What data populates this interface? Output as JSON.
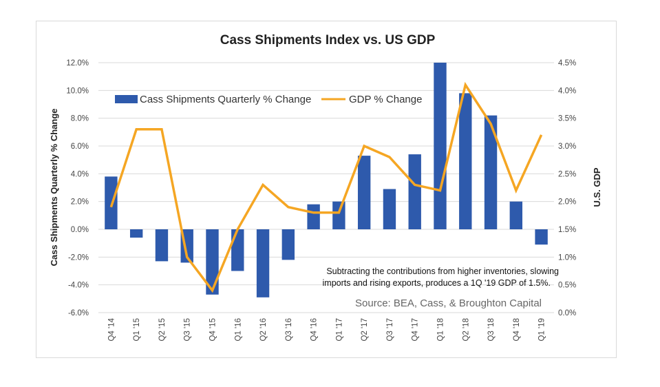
{
  "chart_data": {
    "type": "bar+line",
    "title": "Cass Shipments Index vs. US GDP",
    "ylabel": "Cass Shipments Quarterly % Change",
    "y2label": "U.S. GDP",
    "categories": [
      "Q4 '14",
      "Q1 '15",
      "Q2 '15",
      "Q3 '15",
      "Q4 '15",
      "Q1 '16",
      "Q2 '16",
      "Q3 '16",
      "Q4 '16",
      "Q1 '17",
      "Q2 '17",
      "Q3 '17",
      "Q4 '17",
      "Q1 '18",
      "Q2 '18",
      "Q3 '18",
      "Q4 '18",
      "Q1 '19"
    ],
    "series": [
      {
        "name": "Cass Shipments Quarterly % Change",
        "type": "bar",
        "axis": "left",
        "color": "#2e5aac",
        "values": [
          3.8,
          -0.6,
          -2.3,
          -2.4,
          -4.7,
          -3.0,
          -4.9,
          -2.2,
          1.8,
          2.0,
          5.3,
          2.9,
          5.4,
          12.0,
          9.8,
          8.2,
          2.0,
          -1.1
        ]
      },
      {
        "name": "GDP % Change",
        "type": "line",
        "axis": "right",
        "color": "#f5a623",
        "values": [
          1.9,
          3.3,
          3.3,
          1.0,
          0.4,
          1.5,
          2.3,
          1.9,
          1.8,
          1.8,
          3.0,
          2.8,
          2.3,
          2.2,
          4.1,
          3.4,
          2.2,
          3.2
        ]
      }
    ],
    "ylim": [
      -6,
      12
    ],
    "yticks": [
      "-6.0%",
      "-4.0%",
      "-2.0%",
      "0.0%",
      "2.0%",
      "4.0%",
      "6.0%",
      "8.0%",
      "10.0%",
      "12.0%"
    ],
    "y2lim": [
      0,
      4.5
    ],
    "y2ticks": [
      "0.0%",
      "0.5%",
      "1.0%",
      "1.5%",
      "2.0%",
      "2.5%",
      "3.0%",
      "3.5%",
      "4.0%",
      "4.5%"
    ],
    "grid": true,
    "legend": "top-left",
    "annotations": [
      "Subtracting the contributions from higher inventories, slowing",
      "imports and rising exports, produces a 1Q '19 GDP of 1.5%.",
      "Source: BEA, Cass, & Broughton Capital"
    ]
  }
}
